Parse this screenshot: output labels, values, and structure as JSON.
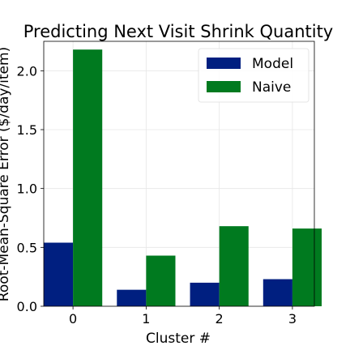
{
  "chart_data": {
    "type": "bar",
    "title": "Predicting Next Visit Shrink Quantity",
    "xlabel": "Cluster #",
    "ylabel": "Root-Mean-Square Error ($/day/item)",
    "categories": [
      "0",
      "1",
      "2",
      "3"
    ],
    "series": [
      {
        "name": "Model",
        "values": [
          0.54,
          0.14,
          0.2,
          0.23
        ],
        "color": "#001f80"
      },
      {
        "name": "Naive",
        "values": [
          2.18,
          0.43,
          0.68,
          0.66
        ],
        "color": "#007a1f"
      }
    ],
    "ylim": [
      0,
      2.25
    ],
    "yticks": [
      "0.0",
      "0.5",
      "1.0",
      "1.5",
      "2.0"
    ],
    "grid": true,
    "legend_position": "top-right"
  }
}
